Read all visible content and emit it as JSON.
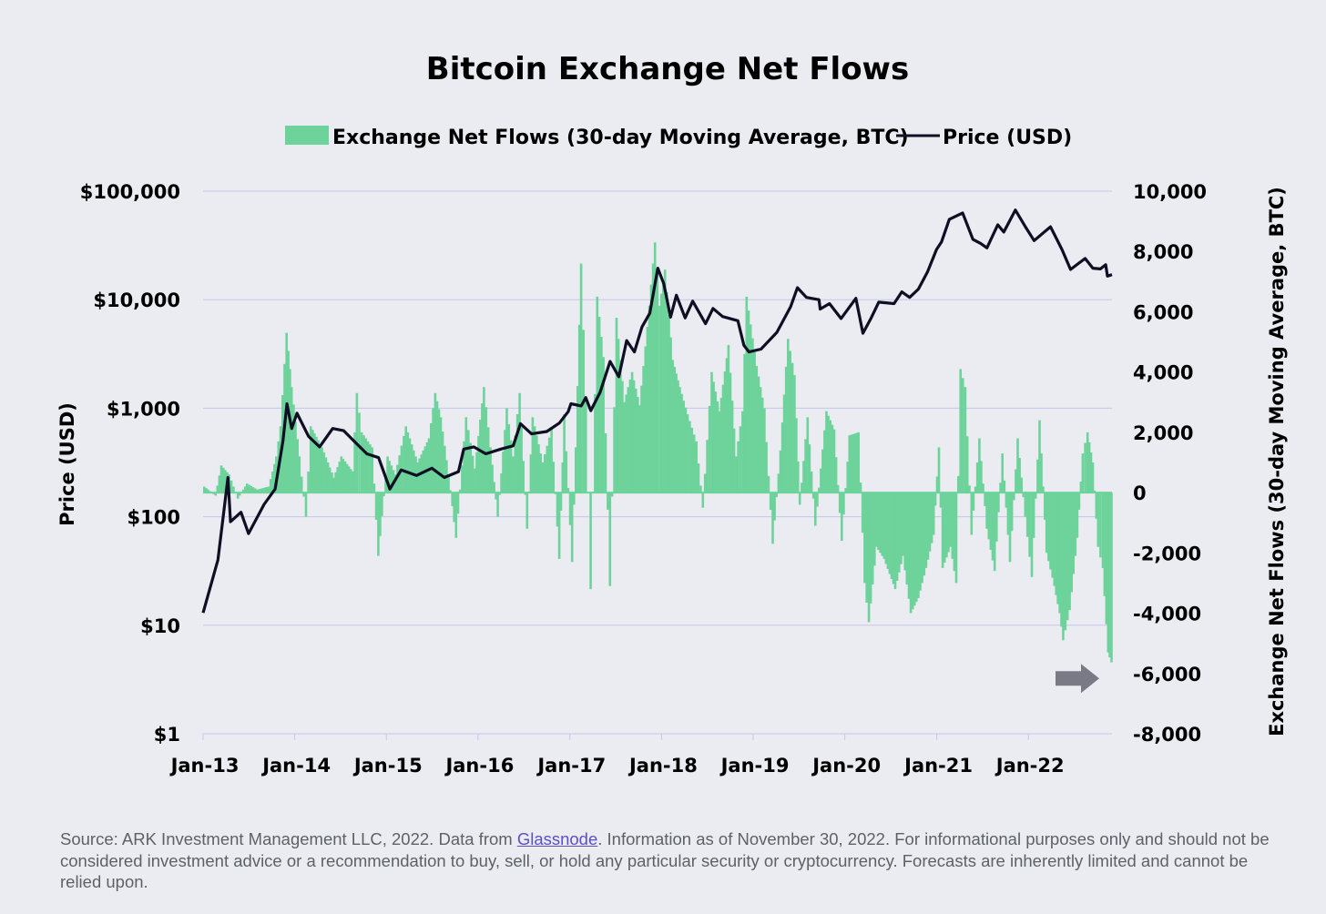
{
  "chart_data": {
    "type": "bar+line",
    "title": "Bitcoin Exchange Net Flows",
    "legend": {
      "position": "top-center",
      "items": [
        {
          "label": "Exchange Net Flows (30-day Moving Average, BTC)",
          "marker": "bar",
          "color": "#6dd39b"
        },
        {
          "label": "Price (USD)",
          "marker": "line",
          "color": "#0f0f24"
        }
      ]
    },
    "x_axis": {
      "range": [
        "2013-01-01",
        "2022-11-30"
      ],
      "tick_labels": [
        "Jan-13",
        "Jan-14",
        "Jan-15",
        "Jan-16",
        "Jan-17",
        "Jan-18",
        "Jan-19",
        "Jan-20",
        "Jan-21",
        "Jan-22"
      ]
    },
    "y_left": {
      "label": "Price (USD)",
      "scale": "log",
      "range": [
        1,
        100000
      ],
      "ticks": [
        1,
        10,
        100,
        1000,
        10000,
        100000
      ],
      "tick_labels": [
        "$1",
        "$10",
        "$100",
        "$1,000",
        "$10,000",
        "$100,000"
      ]
    },
    "y_right": {
      "label": "Exchange Net Flows (30-day Moving Average, BTC)",
      "range": [
        -8000,
        10000
      ],
      "ticks": [
        -8000,
        -6000,
        -4000,
        -2000,
        0,
        2000,
        4000,
        6000,
        8000,
        10000
      ],
      "tick_labels": [
        "-8,000",
        "-6,000",
        "-4,000",
        "-2,000",
        "0",
        "2,000",
        "4,000",
        "6,000",
        "8,000",
        "10,000"
      ]
    },
    "grid": "horizontal",
    "series": [
      {
        "name": "Price (USD)",
        "type": "line",
        "axis": "left",
        "color": "#0f0f24",
        "points": [
          [
            "2013-01-01",
            13
          ],
          [
            "2013-03-01",
            40
          ],
          [
            "2013-04-10",
            230
          ],
          [
            "2013-04-20",
            90
          ],
          [
            "2013-06-01",
            110
          ],
          [
            "2013-07-01",
            70
          ],
          [
            "2013-09-01",
            130
          ],
          [
            "2013-10-15",
            180
          ],
          [
            "2013-11-15",
            500
          ],
          [
            "2013-12-01",
            1100
          ],
          [
            "2013-12-20",
            650
          ],
          [
            "2014-01-10",
            900
          ],
          [
            "2014-02-25",
            550
          ],
          [
            "2014-04-10",
            440
          ],
          [
            "2014-06-01",
            650
          ],
          [
            "2014-07-15",
            620
          ],
          [
            "2014-09-01",
            480
          ],
          [
            "2014-10-15",
            380
          ],
          [
            "2014-12-01",
            350
          ],
          [
            "2015-01-15",
            180
          ],
          [
            "2015-03-01",
            270
          ],
          [
            "2015-05-01",
            240
          ],
          [
            "2015-07-01",
            280
          ],
          [
            "2015-08-20",
            230
          ],
          [
            "2015-10-15",
            260
          ],
          [
            "2015-11-05",
            420
          ],
          [
            "2015-12-15",
            440
          ],
          [
            "2016-02-01",
            380
          ],
          [
            "2016-04-01",
            420
          ],
          [
            "2016-05-20",
            450
          ],
          [
            "2016-06-18",
            720
          ],
          [
            "2016-08-01",
            580
          ],
          [
            "2016-10-01",
            610
          ],
          [
            "2016-11-20",
            730
          ],
          [
            "2016-12-25",
            930
          ],
          [
            "2017-01-05",
            1100
          ],
          [
            "2017-02-15",
            1050
          ],
          [
            "2017-03-05",
            1250
          ],
          [
            "2017-03-25",
            950
          ],
          [
            "2017-05-01",
            1400
          ],
          [
            "2017-06-10",
            2700
          ],
          [
            "2017-07-15",
            1950
          ],
          [
            "2017-08-15",
            4200
          ],
          [
            "2017-09-15",
            3300
          ],
          [
            "2017-10-15",
            5600
          ],
          [
            "2017-11-15",
            7500
          ],
          [
            "2017-12-17",
            19500
          ],
          [
            "2018-01-10",
            14000
          ],
          [
            "2018-02-06",
            6900
          ],
          [
            "2018-03-01",
            11000
          ],
          [
            "2018-04-05",
            6800
          ],
          [
            "2018-05-05",
            9700
          ],
          [
            "2018-06-25",
            6000
          ],
          [
            "2018-07-25",
            8300
          ],
          [
            "2018-09-01",
            7000
          ],
          [
            "2018-11-01",
            6400
          ],
          [
            "2018-11-25",
            3800
          ],
          [
            "2018-12-15",
            3300
          ],
          [
            "2019-02-01",
            3500
          ],
          [
            "2019-04-05",
            5000
          ],
          [
            "2019-05-30",
            8600
          ],
          [
            "2019-06-26",
            12900
          ],
          [
            "2019-08-01",
            10500
          ],
          [
            "2019-09-20",
            10000
          ],
          [
            "2019-09-25",
            8200
          ],
          [
            "2019-11-01",
            9200
          ],
          [
            "2019-12-17",
            6700
          ],
          [
            "2020-02-14",
            10300
          ],
          [
            "2020-03-13",
            4900
          ],
          [
            "2020-04-15",
            6800
          ],
          [
            "2020-05-15",
            9500
          ],
          [
            "2020-07-15",
            9200
          ],
          [
            "2020-08-15",
            11800
          ],
          [
            "2020-09-15",
            10500
          ],
          [
            "2020-10-20",
            12500
          ],
          [
            "2020-11-25",
            18000
          ],
          [
            "2020-12-31",
            29000
          ],
          [
            "2021-01-20",
            34000
          ],
          [
            "2021-02-20",
            55000
          ],
          [
            "2021-04-14",
            63000
          ],
          [
            "2021-05-25",
            36000
          ],
          [
            "2021-06-25",
            33000
          ],
          [
            "2021-07-20",
            30000
          ],
          [
            "2021-09-01",
            49000
          ],
          [
            "2021-09-25",
            42000
          ],
          [
            "2021-11-10",
            67000
          ],
          [
            "2021-12-20",
            47000
          ],
          [
            "2022-01-24",
            35000
          ],
          [
            "2022-03-30",
            47000
          ],
          [
            "2022-05-15",
            29000
          ],
          [
            "2022-06-18",
            19000
          ],
          [
            "2022-08-15",
            24000
          ],
          [
            "2022-09-15",
            19500
          ],
          [
            "2022-10-15",
            19200
          ],
          [
            "2022-11-05",
            21000
          ],
          [
            "2022-11-12",
            16500
          ],
          [
            "2022-11-30",
            17000
          ]
        ]
      },
      {
        "name": "Exchange Net Flows (30-day Moving Average, BTC)",
        "type": "bar",
        "axis": "right",
        "color": "#6dd39b",
        "points": [
          [
            "2013-01-01",
            200
          ],
          [
            "2013-02-15",
            -100
          ],
          [
            "2013-03-10",
            900
          ],
          [
            "2013-04-10",
            600
          ],
          [
            "2013-05-15",
            -200
          ],
          [
            "2013-06-20",
            300
          ],
          [
            "2013-08-01",
            100
          ],
          [
            "2013-09-15",
            200
          ],
          [
            "2013-10-15",
            1200
          ],
          [
            "2013-11-01",
            2200
          ],
          [
            "2013-11-25",
            5300
          ],
          [
            "2013-12-15",
            3500
          ],
          [
            "2014-01-15",
            1200
          ],
          [
            "2014-02-10",
            -800
          ],
          [
            "2014-03-01",
            2200
          ],
          [
            "2014-04-15",
            1500
          ],
          [
            "2014-06-01",
            500
          ],
          [
            "2014-07-01",
            1200
          ],
          [
            "2014-08-15",
            700
          ],
          [
            "2014-09-01",
            3300
          ],
          [
            "2014-09-20",
            2000
          ],
          [
            "2014-11-01",
            1500
          ],
          [
            "2014-11-25",
            -2100
          ],
          [
            "2015-01-01",
            1200
          ],
          [
            "2015-02-01",
            600
          ],
          [
            "2015-03-15",
            2200
          ],
          [
            "2015-05-01",
            1000
          ],
          [
            "2015-06-15",
            1800
          ],
          [
            "2015-07-10",
            3300
          ],
          [
            "2015-08-01",
            2500
          ],
          [
            "2015-09-01",
            600
          ],
          [
            "2015-10-01",
            -1500
          ],
          [
            "2015-11-10",
            2500
          ],
          [
            "2015-12-15",
            800
          ],
          [
            "2016-01-20",
            3500
          ],
          [
            "2016-02-15",
            1500
          ],
          [
            "2016-03-15",
            -800
          ],
          [
            "2016-04-20",
            2800
          ],
          [
            "2016-05-15",
            1200
          ],
          [
            "2016-06-10",
            3300
          ],
          [
            "2016-07-10",
            -1200
          ],
          [
            "2016-08-01",
            2500
          ],
          [
            "2016-09-10",
            1000
          ],
          [
            "2016-10-15",
            2100
          ],
          [
            "2016-11-15",
            -2200
          ],
          [
            "2016-12-05",
            2600
          ],
          [
            "2017-01-05",
            -2300
          ],
          [
            "2017-01-20",
            1500
          ],
          [
            "2017-02-10",
            7600
          ],
          [
            "2017-03-01",
            3200
          ],
          [
            "2017-03-20",
            -3200
          ],
          [
            "2017-04-15",
            6500
          ],
          [
            "2017-05-10",
            4500
          ],
          [
            "2017-06-05",
            -3100
          ],
          [
            "2017-07-01",
            5800
          ],
          [
            "2017-08-01",
            3000
          ],
          [
            "2017-09-01",
            4000
          ],
          [
            "2017-10-01",
            2900
          ],
          [
            "2017-11-01",
            5500
          ],
          [
            "2017-12-01",
            8300
          ],
          [
            "2017-12-20",
            6200
          ],
          [
            "2018-01-10",
            7400
          ],
          [
            "2018-02-10",
            4400
          ],
          [
            "2018-03-10",
            3500
          ],
          [
            "2018-04-10",
            2600
          ],
          [
            "2018-05-15",
            1700
          ],
          [
            "2018-06-10",
            -500
          ],
          [
            "2018-07-15",
            4000
          ],
          [
            "2018-08-15",
            2700
          ],
          [
            "2018-09-20",
            4900
          ],
          [
            "2018-10-20",
            1200
          ],
          [
            "2018-11-15",
            2700
          ],
          [
            "2018-12-01",
            6500
          ],
          [
            "2019-01-10",
            4200
          ],
          [
            "2019-02-10",
            2800
          ],
          [
            "2019-03-15",
            -1700
          ],
          [
            "2019-04-15",
            1400
          ],
          [
            "2019-05-15",
            5100
          ],
          [
            "2019-06-10",
            3900
          ],
          [
            "2019-07-01",
            -400
          ],
          [
            "2019-08-01",
            2500
          ],
          [
            "2019-09-01",
            -1100
          ],
          [
            "2019-10-15",
            2700
          ],
          [
            "2019-11-15",
            2100
          ],
          [
            "2019-12-15",
            -1600
          ],
          [
            "2020-01-15",
            1900
          ],
          [
            "2020-02-20",
            2000
          ],
          [
            "2020-03-15",
            -3000
          ],
          [
            "2020-04-01",
            -4300
          ],
          [
            "2020-05-01",
            -1800
          ],
          [
            "2020-06-01",
            -2200
          ],
          [
            "2020-07-15",
            -3200
          ],
          [
            "2020-08-15",
            -2100
          ],
          [
            "2020-09-15",
            -4000
          ],
          [
            "2020-10-15",
            -3500
          ],
          [
            "2020-11-15",
            -2500
          ],
          [
            "2020-12-15",
            -1400
          ],
          [
            "2021-01-05",
            1500
          ],
          [
            "2021-01-20",
            -2500
          ],
          [
            "2021-02-20",
            -1800
          ],
          [
            "2021-03-15",
            -3000
          ],
          [
            "2021-04-01",
            4100
          ],
          [
            "2021-04-20",
            3500
          ],
          [
            "2021-05-15",
            -1400
          ],
          [
            "2021-06-15",
            1800
          ],
          [
            "2021-07-15",
            -1200
          ],
          [
            "2021-08-15",
            -2600
          ],
          [
            "2021-09-15",
            1300
          ],
          [
            "2021-10-15",
            -2300
          ],
          [
            "2021-11-15",
            1800
          ],
          [
            "2021-12-15",
            -800
          ],
          [
            "2022-01-10",
            -2800
          ],
          [
            "2022-02-10",
            2400
          ],
          [
            "2022-03-10",
            -2000
          ],
          [
            "2022-04-10",
            -3100
          ],
          [
            "2022-05-01",
            -4000
          ],
          [
            "2022-05-15",
            -4900
          ],
          [
            "2022-06-10",
            -3900
          ],
          [
            "2022-07-10",
            -1500
          ],
          [
            "2022-08-01",
            1300
          ],
          [
            "2022-08-20",
            2000
          ],
          [
            "2022-09-10",
            1000
          ],
          [
            "2022-10-01",
            -1800
          ],
          [
            "2022-10-20",
            -2500
          ],
          [
            "2022-11-10",
            -5300
          ],
          [
            "2022-11-30",
            -5800
          ]
        ]
      }
    ],
    "annotations": [
      {
        "type": "arrow",
        "shape": "block-right",
        "color": "#7a7a86",
        "points_to": [
          "2022-11-30",
          -5800
        ]
      }
    ]
  },
  "footer": {
    "source_pre": "Source: ARK Investment Management LLC, 2022. Data from ",
    "link": "Glassnode",
    "source_post": ". Information as of November 30, 2022. For informational purposes only and should not be considered investment advice or a recommendation to buy, sell, or hold any particular security or cryptocurrency. Forecasts are inherently limited and cannot be relied upon."
  }
}
